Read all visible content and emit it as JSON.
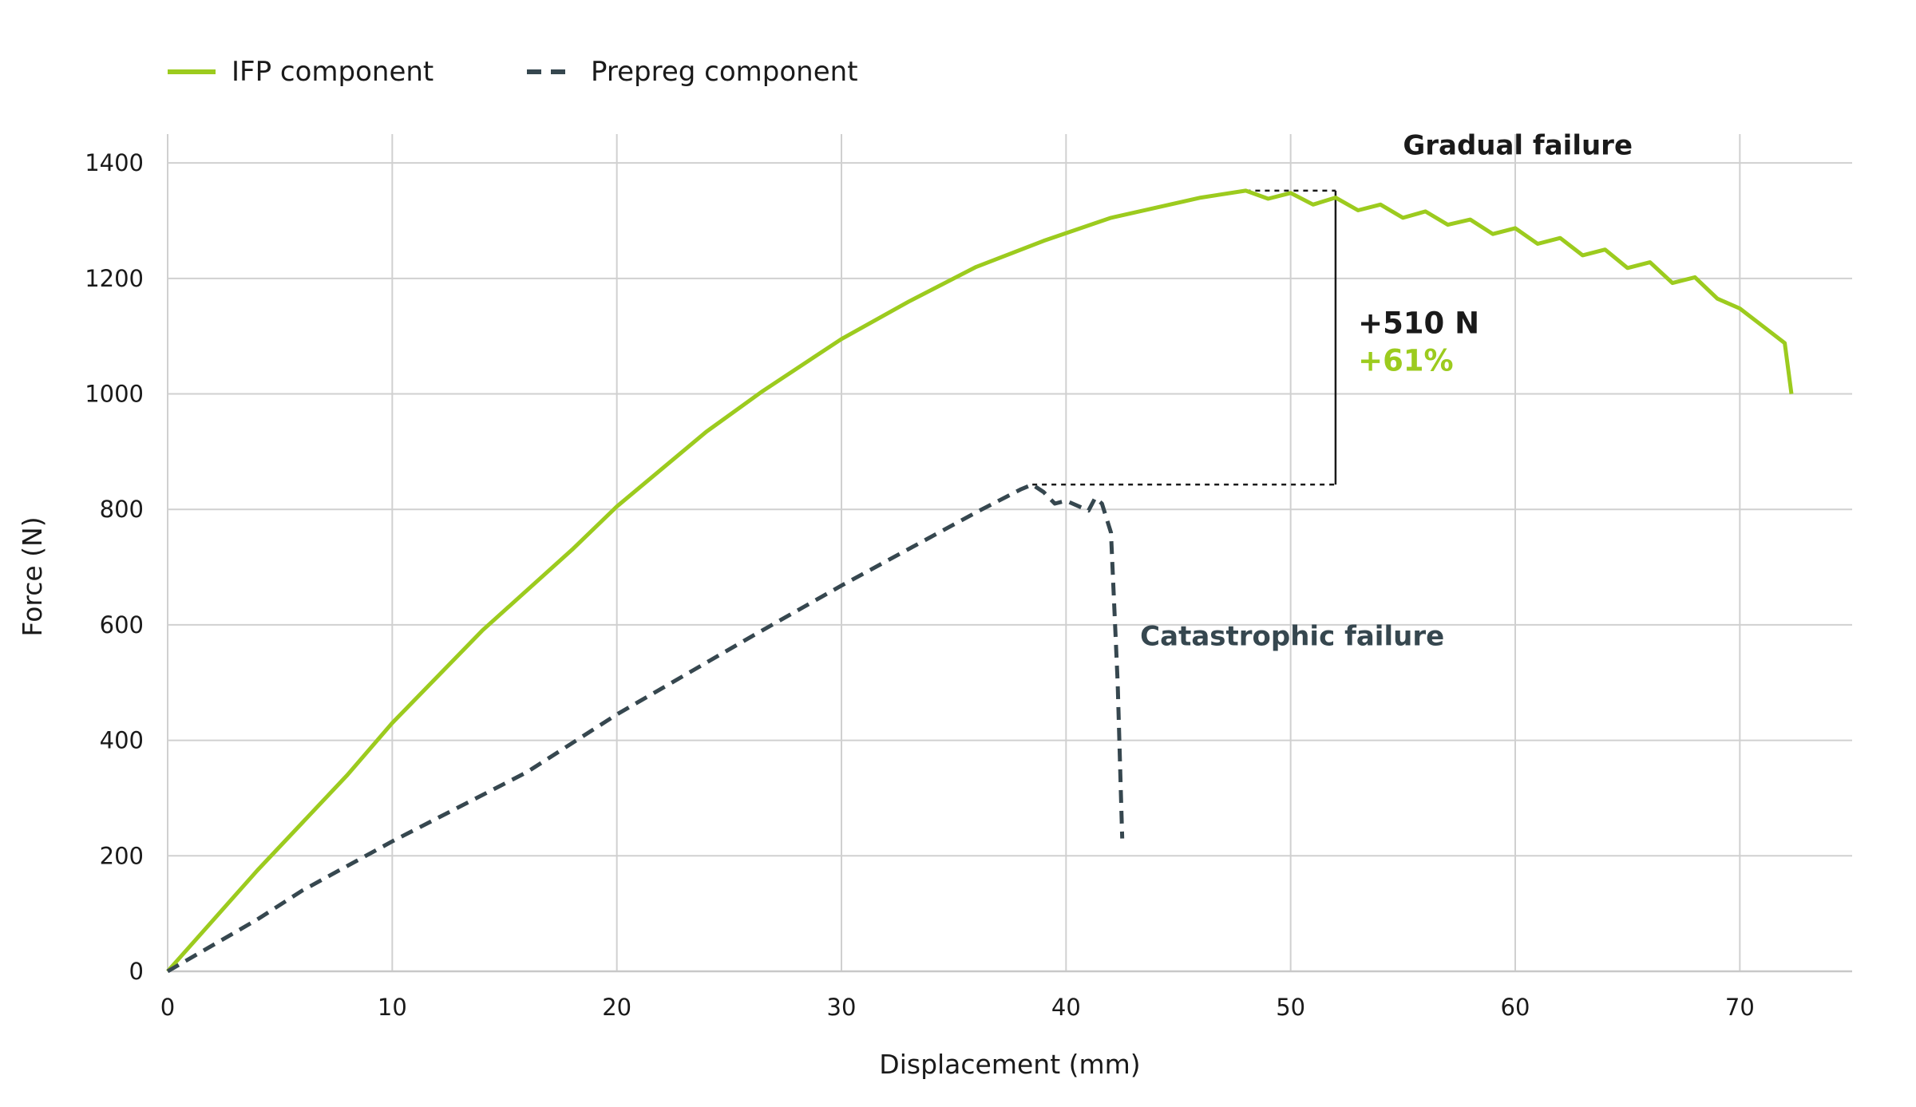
{
  "chart_data": {
    "type": "line",
    "title": "",
    "xlabel": "Displacement (mm)",
    "ylabel": "Force (N)",
    "xlim": [
      0,
      75
    ],
    "ylim": [
      0,
      1450
    ],
    "xticks": [
      0,
      10,
      20,
      30,
      40,
      50,
      60,
      70
    ],
    "yticks": [
      0,
      200,
      400,
      600,
      800,
      1000,
      1200,
      1400
    ],
    "grid": true,
    "legend_position": "top-left",
    "series": [
      {
        "name": "IFP component",
        "color": "#9ccb1e",
        "style": "solid",
        "points": [
          [
            0,
            0
          ],
          [
            4,
            175
          ],
          [
            8,
            340
          ],
          [
            10,
            430
          ],
          [
            14,
            590
          ],
          [
            18,
            730
          ],
          [
            20,
            805
          ],
          [
            24,
            935
          ],
          [
            26.5,
            1005
          ],
          [
            30,
            1095
          ],
          [
            33,
            1160
          ],
          [
            36,
            1220
          ],
          [
            39,
            1265
          ],
          [
            42,
            1305
          ],
          [
            46,
            1340
          ],
          [
            48,
            1352
          ],
          [
            49,
            1338
          ],
          [
            50,
            1348
          ],
          [
            51,
            1328
          ],
          [
            52,
            1340
          ],
          [
            53,
            1318
          ],
          [
            54,
            1328
          ],
          [
            55,
            1305
          ],
          [
            56,
            1316
          ],
          [
            57,
            1293
          ],
          [
            58,
            1302
          ],
          [
            59,
            1277
          ],
          [
            60,
            1287
          ],
          [
            61,
            1260
          ],
          [
            62,
            1270
          ],
          [
            63,
            1240
          ],
          [
            64,
            1250
          ],
          [
            65,
            1218
          ],
          [
            66,
            1228
          ],
          [
            67,
            1192
          ],
          [
            68,
            1202
          ],
          [
            69,
            1165
          ],
          [
            70,
            1148
          ],
          [
            71,
            1118
          ],
          [
            72,
            1088
          ],
          [
            72.3,
            1000
          ]
        ]
      },
      {
        "name": "Prepreg component",
        "color": "#36474f",
        "style": "dashed",
        "points": [
          [
            0,
            0
          ],
          [
            4,
            90
          ],
          [
            6,
            140
          ],
          [
            10,
            225
          ],
          [
            16,
            345
          ],
          [
            20,
            445
          ],
          [
            26,
            580
          ],
          [
            30,
            668
          ],
          [
            36,
            795
          ],
          [
            38,
            835
          ],
          [
            38.5,
            843
          ],
          [
            39,
            830
          ],
          [
            39.5,
            810
          ],
          [
            40,
            815
          ],
          [
            41,
            798
          ],
          [
            41.3,
            820
          ],
          [
            41.6,
            810
          ],
          [
            42,
            760
          ],
          [
            42.3,
            500
          ],
          [
            42.5,
            230
          ]
        ]
      }
    ],
    "annotations": [
      {
        "text": "Gradual failure",
        "x": 55,
        "y": 1415,
        "color": "#1a1a1a"
      },
      {
        "text": "+510 N",
        "x": 53,
        "y": 1105,
        "color": "#1a1a1a"
      },
      {
        "text": "+61%",
        "x": 53,
        "y": 1040,
        "color": "#9ccb1e"
      },
      {
        "text": "Catastrophic failure",
        "x": 43.3,
        "y": 565,
        "color": "#36474f"
      }
    ],
    "reference_lines": {
      "ifp_peak": {
        "x1": 48,
        "x2": 52,
        "y": 1352
      },
      "prepreg_peak": {
        "x1": 38.5,
        "x2": 52,
        "y": 843
      },
      "difference": {
        "x": 52,
        "y1": 843,
        "y2": 1352
      }
    }
  }
}
